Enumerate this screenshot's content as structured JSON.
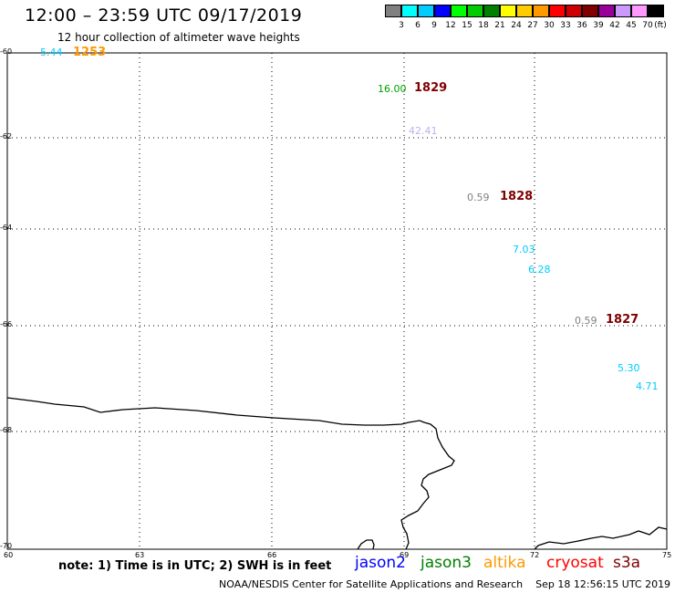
{
  "header": {
    "title": "12:00 – 23:59 UTC 09/17/2019",
    "subtitle": "12 hour collection of altimeter wave heights"
  },
  "legend": {
    "colors": [
      "#808080",
      "#00ffff",
      "#00ccff",
      "#0000ff",
      "#00ff00",
      "#00cc00",
      "#008000",
      "#ffff00",
      "#ffcc00",
      "#ff9900",
      "#ff0000",
      "#cc0000",
      "#800000",
      "#990099",
      "#cc99ff",
      "#ff99ff",
      "#000000"
    ],
    "ticks": [
      "3",
      "6",
      "9",
      "12",
      "15",
      "18",
      "21",
      "24",
      "27",
      "30",
      "33",
      "36",
      "39",
      "42",
      "45",
      "70"
    ],
    "unit": "(ft)"
  },
  "axes": {
    "lat_labels": [
      "-60",
      "-62",
      "-64",
      "-66",
      "-68",
      "-70"
    ],
    "lon_labels": [
      "60",
      "63",
      "66",
      "69",
      "72",
      "75"
    ]
  },
  "observations": [
    {
      "value": "5.44",
      "value_color": "#00ccff",
      "time": "1253",
      "time_color": "#ff9900"
    },
    {
      "value": "16.00",
      "value_color": "#00a000",
      "time": "1829",
      "time_color": "#800000"
    },
    {
      "value": "42.41",
      "value_color": "#c0b0f0"
    },
    {
      "value": "0.59",
      "value_color": "#808080",
      "time": "1828",
      "time_color": "#800000"
    },
    {
      "value": "7.03",
      "value_color": "#00ccff"
    },
    {
      "value": "6.28",
      "value_color": "#00ccff"
    },
    {
      "value": "0.59",
      "value_color": "#808080",
      "time": "1827",
      "time_color": "#800000"
    },
    {
      "value": "5.30",
      "value_color": "#00ccff"
    },
    {
      "value": "4.71",
      "value_color": "#00ccff"
    }
  ],
  "note": "note: 1) Time is in UTC; 2) SWH is in feet",
  "satellites": [
    {
      "name": "jason2",
      "color": "#0000ff"
    },
    {
      "name": "jason3",
      "color": "#008000"
    },
    {
      "name": "altika",
      "color": "#ff9900"
    },
    {
      "name": "cryosat",
      "color": "#ff0000"
    },
    {
      "name": "s3a",
      "color": "#800000"
    }
  ],
  "footer": {
    "agency": "NOAA/NESDIS Center for Satellite Applications and Research",
    "generated": "Sep 18 12:56:15 UTC 2019"
  }
}
